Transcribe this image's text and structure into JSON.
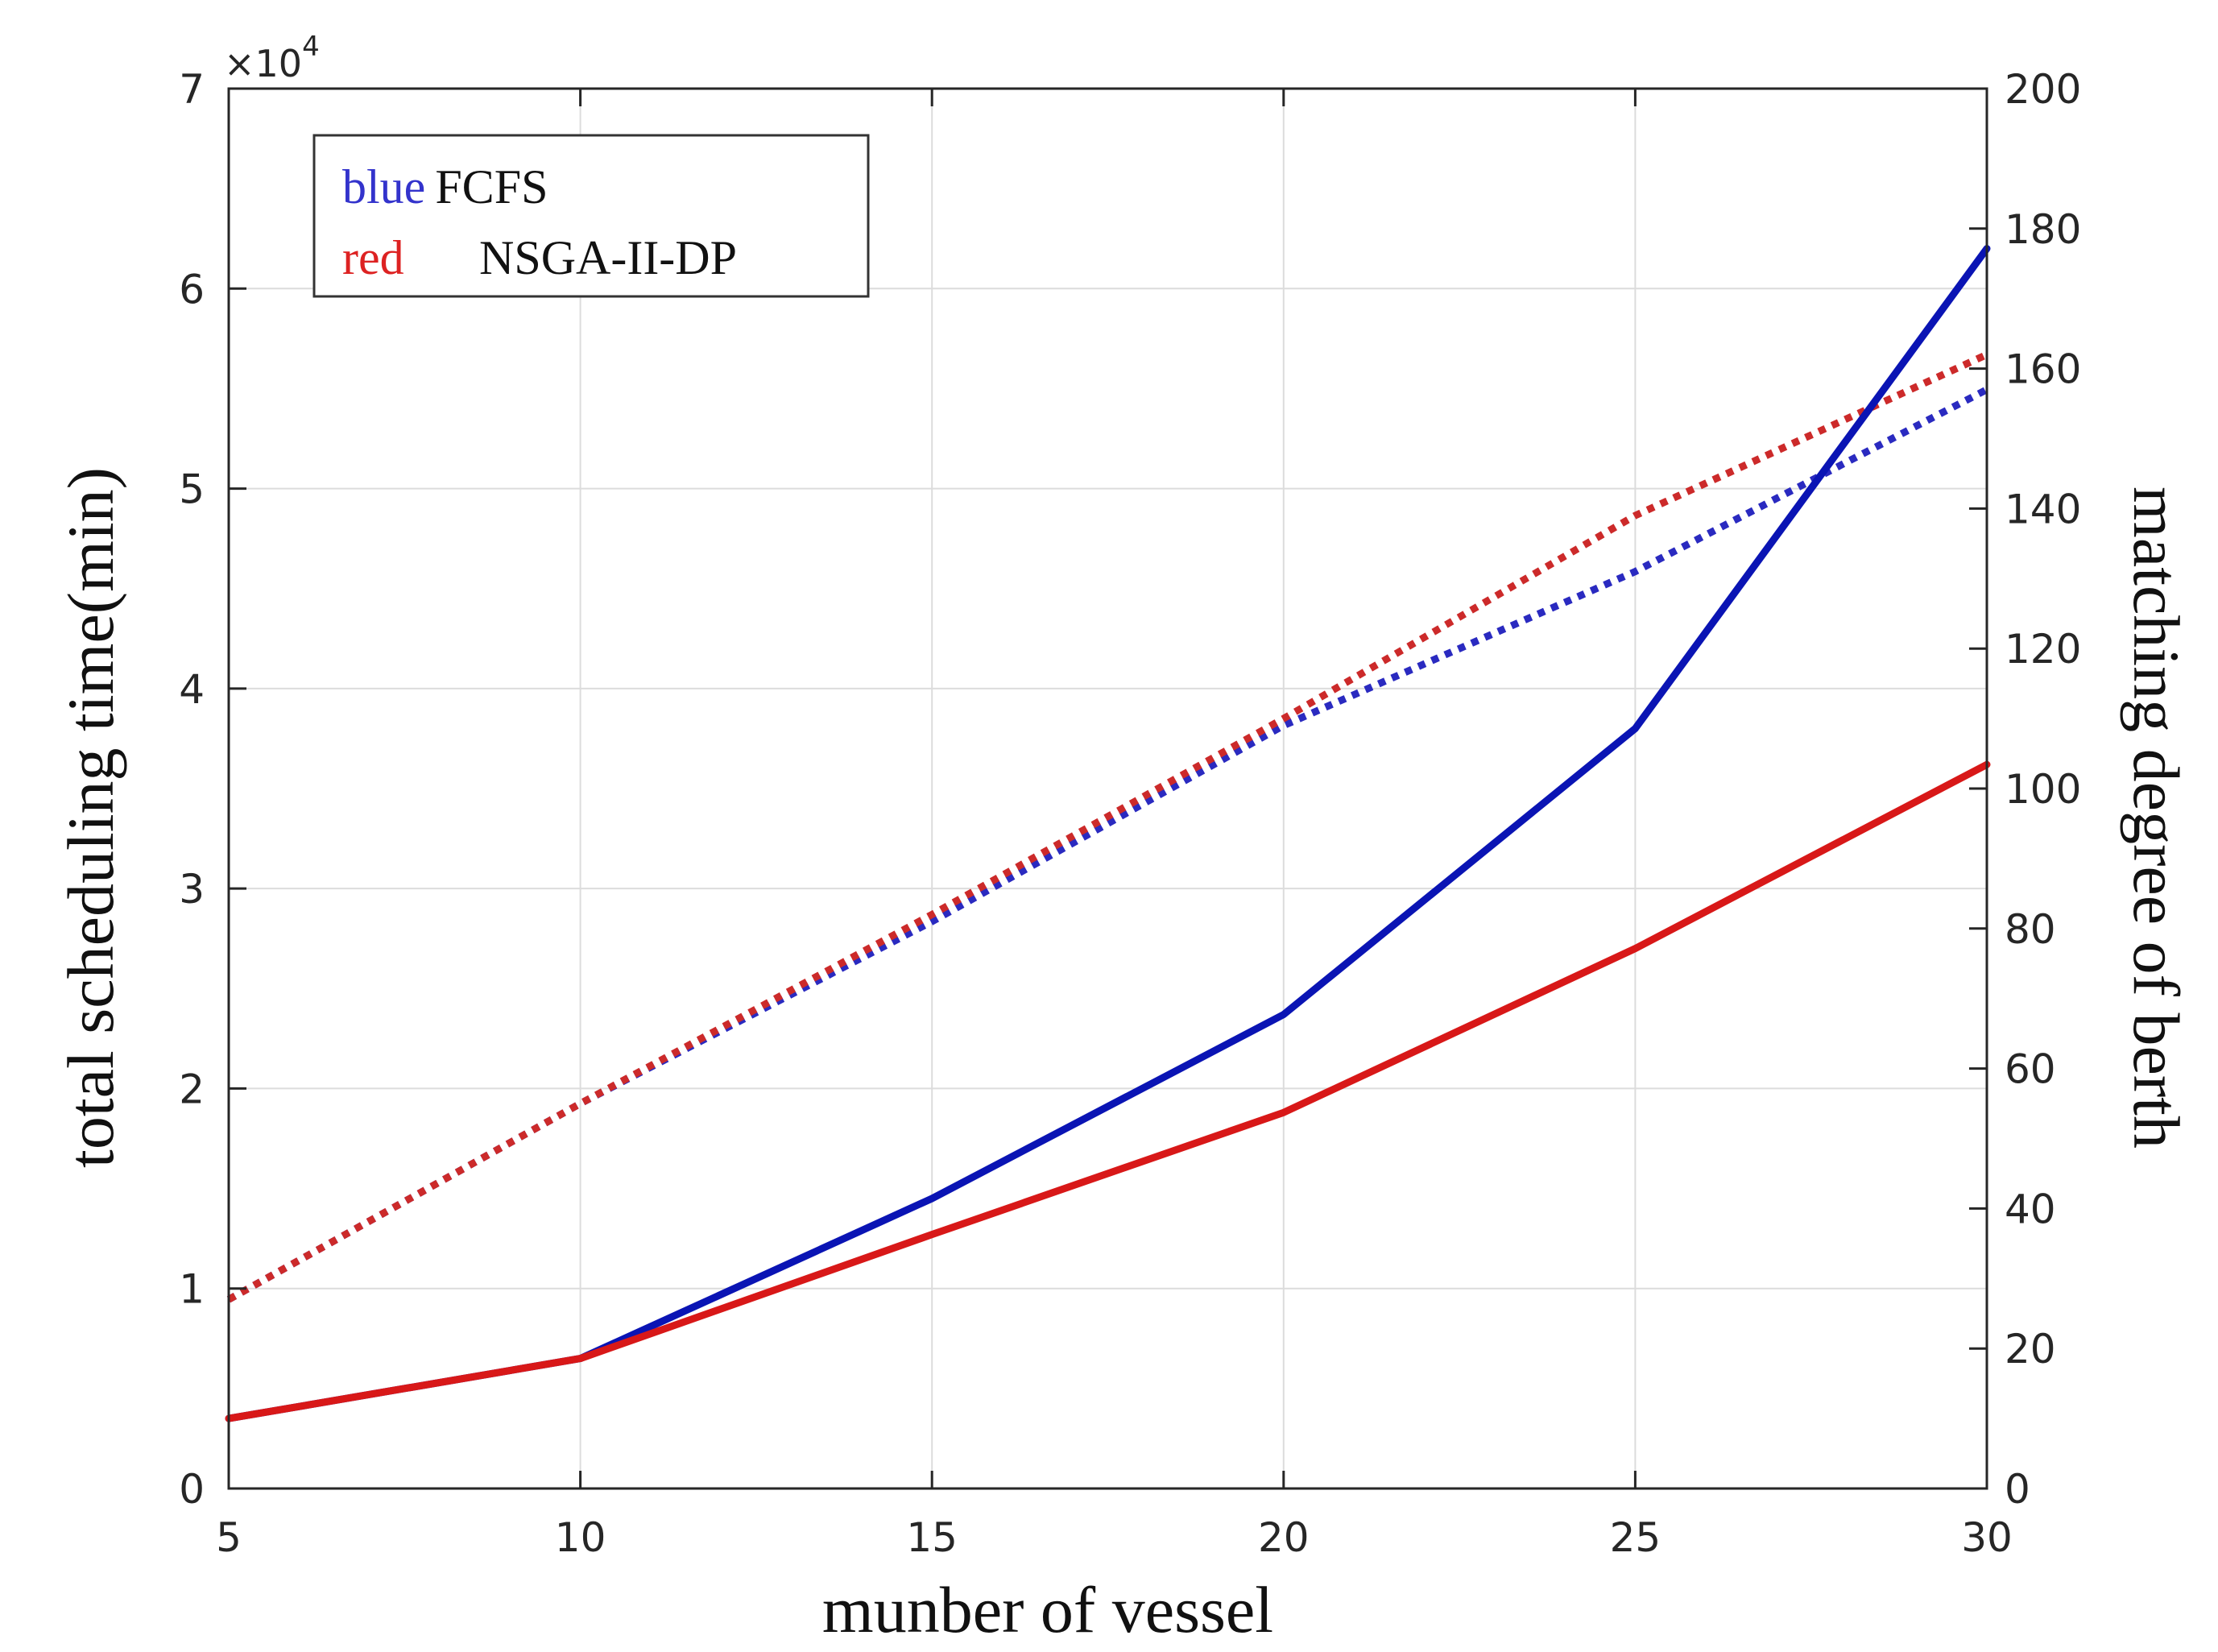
{
  "chart_data": {
    "type": "line",
    "xlabel": "munber of vessel",
    "ylabel_left": "total scheduling time(min)",
    "ylabel_right": "matching degree of berth",
    "y_left_exponent_label": "×10",
    "y_left_exponent_power": "4",
    "x": [
      5,
      10,
      15,
      20,
      25,
      30
    ],
    "xlim": [
      5,
      30
    ],
    "ylim_left": [
      0,
      7
    ],
    "ylim_right": [
      0,
      200
    ],
    "x_ticks": [
      5,
      10,
      15,
      20,
      25,
      30
    ],
    "x_tick_labels": [
      "5",
      "10",
      "15",
      "20",
      "25",
      "30"
    ],
    "y_left_ticks": [
      0,
      1,
      2,
      3,
      4,
      5,
      6,
      7
    ],
    "y_left_tick_labels": [
      "0",
      "1",
      "2",
      "3",
      "4",
      "5",
      "6",
      "7"
    ],
    "y_right_ticks": [
      0,
      20,
      40,
      60,
      80,
      100,
      120,
      140,
      160,
      180,
      200
    ],
    "y_right_tick_labels": [
      "0",
      "20",
      "40",
      "60",
      "80",
      "100",
      "120",
      "140",
      "160",
      "180",
      "200"
    ],
    "grid": true,
    "legend_position": "top-left",
    "legend": [
      {
        "color_word": "blue",
        "label": "FCFS",
        "color": "#3333cc"
      },
      {
        "color_word": "red",
        "label": "NSGA-II-DP",
        "color": "#dd2222"
      }
    ],
    "series": [
      {
        "name": "FCFS total scheduling time",
        "axis": "left",
        "style": "solid",
        "color": "#0a14b4",
        "values": [
          0.35,
          0.65,
          1.45,
          2.37,
          3.8,
          6.2
        ]
      },
      {
        "name": "NSGA-II-DP total scheduling time",
        "axis": "left",
        "style": "solid",
        "color": "#d81818",
        "values": [
          0.35,
          0.65,
          1.27,
          1.88,
          2.7,
          3.62
        ]
      },
      {
        "name": "FCFS matching degree",
        "axis": "right",
        "style": "dotted",
        "color": "#2a2ac0",
        "values": [
          27,
          55,
          81,
          109,
          131,
          157
        ]
      },
      {
        "name": "NSGA-II-DP matching degree",
        "axis": "right",
        "style": "dotted",
        "color": "#cc2a2a",
        "values": [
          27,
          55,
          82,
          110,
          139,
          162
        ]
      }
    ]
  }
}
